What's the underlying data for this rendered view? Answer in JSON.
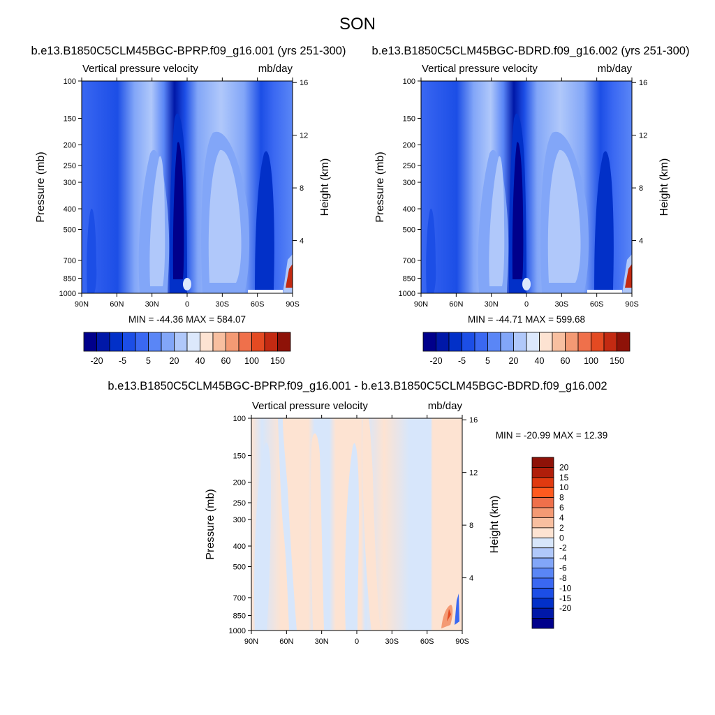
{
  "page": {
    "title": "SON"
  },
  "colors": {
    "ab_levels": [
      "#00008b",
      "#0018a8",
      "#0230c8",
      "#1c4ee6",
      "#3a68f2",
      "#5a86f6",
      "#82a6f8",
      "#b0c8fa",
      "#dce8fc",
      "#fde3d2",
      "#f8bfa0",
      "#f49a74",
      "#ef704b",
      "#e44a22",
      "#c32a12",
      "#8e1208"
    ],
    "diff_levels": [
      "#00008b",
      "#0018a8",
      "#0230c8",
      "#1c4ee6",
      "#3a68f2",
      "#5a86f6",
      "#82a6f8",
      "#b0c8fa",
      "#d7e6fb",
      "#fde3d2",
      "#f8bfa0",
      "#f49a74",
      "#ef704b",
      "#ff5a1f",
      "#e03a10",
      "#b01e0a",
      "#8e1208"
    ]
  },
  "chart_data": [
    {
      "id": "panel-a",
      "type": "heatmap",
      "title": "b.e13.B1850C5CLM45BGC-BPRP.f09_g16.001 (yrs 251-300)",
      "left_label": "Vertical pressure velocity",
      "right_label": "mb/day",
      "xlabel": "",
      "ylabel": "Pressure (mb)",
      "y2label": "Height (km)",
      "x_ticks": [
        "90N",
        "60N",
        "30N",
        "0",
        "30S",
        "60S",
        "90S"
      ],
      "x_tick_values": [
        90,
        60,
        30,
        0,
        -30,
        -60,
        -90
      ],
      "y_ticks": [
        "100",
        "150",
        "200",
        "250",
        "300",
        "400",
        "500",
        "700",
        "850",
        "1000"
      ],
      "y_tick_values": [
        100,
        150,
        200,
        250,
        300,
        400,
        500,
        700,
        850,
        1000
      ],
      "y2_ticks": [
        "16",
        "12",
        "8",
        "4"
      ],
      "y2_tick_values": [
        16,
        12,
        8,
        4
      ],
      "ylim": [
        1000,
        100
      ],
      "xlim": [
        90,
        -90
      ],
      "stats": "MIN = -44.36  MAX = 584.07",
      "min": -44.36,
      "max": 584.07,
      "colorbar_labels": [
        "-20",
        "-5",
        "5",
        "20",
        "40",
        "60",
        "100",
        "150"
      ]
    },
    {
      "id": "panel-b",
      "type": "heatmap",
      "title": "b.e13.B1850C5CLM45BGC-BDRD.f09_g16.002 (yrs 251-300)",
      "left_label": "Vertical pressure velocity",
      "right_label": "mb/day",
      "xlabel": "",
      "ylabel": "Pressure (mb)",
      "y2label": "Height (km)",
      "x_ticks": [
        "90N",
        "60N",
        "30N",
        "0",
        "30S",
        "60S",
        "90S"
      ],
      "x_tick_values": [
        90,
        60,
        30,
        0,
        -30,
        -60,
        -90
      ],
      "y_ticks": [
        "100",
        "150",
        "200",
        "250",
        "300",
        "400",
        "500",
        "700",
        "850",
        "1000"
      ],
      "y_tick_values": [
        100,
        150,
        200,
        250,
        300,
        400,
        500,
        700,
        850,
        1000
      ],
      "y2_ticks": [
        "16",
        "12",
        "8",
        "4"
      ],
      "y2_tick_values": [
        16,
        12,
        8,
        4
      ],
      "ylim": [
        1000,
        100
      ],
      "xlim": [
        90,
        -90
      ],
      "stats": "MIN = -44.71  MAX = 599.68",
      "min": -44.71,
      "max": 599.68,
      "colorbar_labels": [
        "-20",
        "-5",
        "5",
        "20",
        "40",
        "60",
        "100",
        "150"
      ]
    },
    {
      "id": "panel-diff",
      "type": "heatmap",
      "title": "b.e13.B1850C5CLM45BGC-BPRP.f09_g16.001 - b.e13.B1850C5CLM45BGC-BDRD.f09_g16.002",
      "left_label": "Vertical pressure velocity",
      "right_label": "mb/day",
      "xlabel": "",
      "ylabel": "Pressure (mb)",
      "y2label": "Height (km)",
      "x_ticks": [
        "90N",
        "60N",
        "30N",
        "0",
        "30S",
        "60S",
        "90S"
      ],
      "x_tick_values": [
        90,
        60,
        30,
        0,
        -30,
        -60,
        -90
      ],
      "y_ticks": [
        "100",
        "150",
        "200",
        "250",
        "300",
        "400",
        "500",
        "700",
        "850",
        "1000"
      ],
      "y_tick_values": [
        100,
        150,
        200,
        250,
        300,
        400,
        500,
        700,
        850,
        1000
      ],
      "y2_ticks": [
        "16",
        "12",
        "8",
        "4"
      ],
      "y2_tick_values": [
        16,
        12,
        8,
        4
      ],
      "ylim": [
        1000,
        100
      ],
      "xlim": [
        90,
        -90
      ],
      "stats": "MIN = -20.99  MAX =  12.39",
      "min": -20.99,
      "max": 12.39,
      "colorbar_labels": [
        "20",
        "15",
        "10",
        "8",
        "6",
        "4",
        "2",
        "0",
        "-2",
        "-4",
        "-6",
        "-8",
        "-10",
        "-15",
        "-20"
      ]
    }
  ]
}
